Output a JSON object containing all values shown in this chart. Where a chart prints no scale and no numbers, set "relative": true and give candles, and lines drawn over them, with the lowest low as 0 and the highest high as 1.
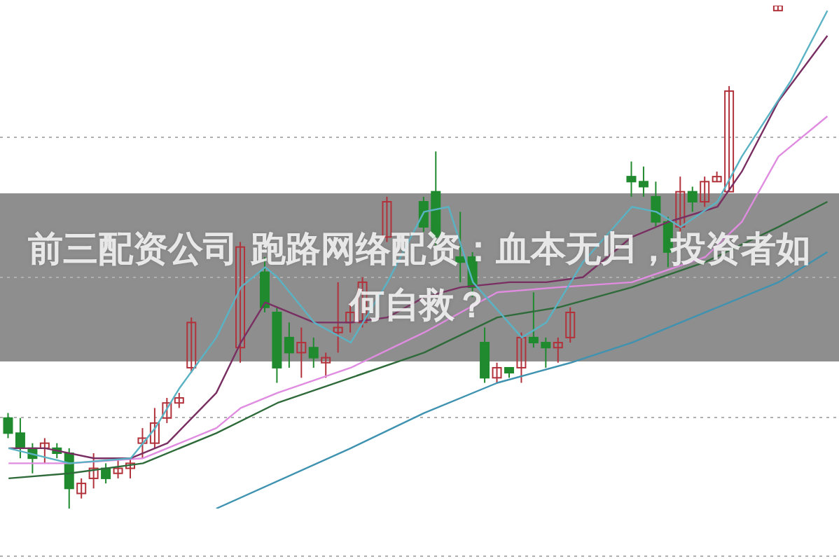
{
  "chart_data": {
    "type": "candlestick",
    "title": "前三配资公司 跑路网络配资：血本无归，投资者如何自救？",
    "relative": true,
    "grid": "y",
    "categories": [
      null,
      null,
      null,
      null,
      null,
      null,
      null,
      null,
      null,
      null,
      null,
      null,
      null,
      null,
      null,
      null,
      null,
      null,
      null,
      null,
      null,
      null,
      null,
      null,
      null,
      null,
      null,
      null,
      null,
      null,
      null,
      null,
      null,
      null,
      null,
      null,
      null,
      null,
      null,
      null,
      null,
      null,
      null,
      null,
      null,
      null,
      null,
      null,
      null,
      null,
      null,
      null,
      null,
      null,
      null,
      null,
      null,
      null,
      null,
      null,
      null,
      null,
      null,
      null,
      null,
      null,
      null,
      null
    ],
    "ohlc": [
      [
        0.18,
        0.19,
        0.14,
        0.15
      ],
      [
        0.15,
        0.18,
        0.1,
        0.12
      ],
      [
        0.12,
        0.13,
        0.07,
        0.1
      ],
      [
        0.12,
        0.14,
        0.09,
        0.13
      ],
      [
        0.12,
        0.13,
        0.1,
        0.11
      ],
      [
        0.11,
        0.12,
        0,
        0.04
      ],
      [
        0.03,
        0.06,
        0.02,
        0.05
      ],
      [
        0.06,
        0.11,
        0.04,
        0.08
      ],
      [
        0.08,
        0.09,
        0.05,
        0.06
      ],
      [
        0.07,
        0.1,
        0.06,
        0.08
      ],
      [
        0.08,
        0.1,
        0.06,
        0.09
      ],
      [
        0.13,
        0.16,
        0.1,
        0.14
      ],
      [
        0.13,
        0.2,
        0.12,
        0.17
      ],
      [
        0.18,
        0.22,
        0.17,
        0.21
      ],
      [
        0.21,
        0.23,
        0.2,
        0.22
      ],
      [
        0.28,
        0.38,
        0.27,
        0.37
      ],
      null,
      null,
      null,
      [
        0.32,
        0.53,
        0.29,
        0.52
      ],
      null,
      [
        0.47,
        0.5,
        0.39,
        0.4
      ],
      [
        0.39,
        0.4,
        0.25,
        0.28
      ],
      [
        0.34,
        0.37,
        0.28,
        0.31
      ],
      [
        0.31,
        0.36,
        0.26,
        0.33
      ],
      [
        0.32,
        0.34,
        0.28,
        0.3
      ],
      [
        0.29,
        0.31,
        0.26,
        0.3
      ],
      [
        0.35,
        0.45,
        0.31,
        0.36
      ],
      [
        0.37,
        0.41,
        0.35,
        0.39
      ],
      [
        0.37,
        0.46,
        0.36,
        0.45
      ],
      null,
      [
        0.54,
        0.62,
        0.53,
        0.61
      ],
      null,
      null,
      [
        0.61,
        0.62,
        0.55,
        0.56
      ],
      [
        0.63,
        0.71,
        0.52,
        0.54
      ],
      null,
      [
        0.5,
        0.59,
        0.45,
        0.49
      ],
      [
        0.5,
        0.51,
        0.42,
        0.44
      ],
      [
        0.33,
        0.36,
        0.25,
        0.26
      ],
      [
        0.26,
        0.29,
        0.25,
        0.28
      ],
      [
        0.28,
        0.28,
        0.26,
        0.27
      ],
      [
        0.28,
        0.35,
        0.25,
        0.34
      ],
      [
        0.34,
        0.43,
        0.32,
        0.33
      ],
      [
        0.33,
        0.34,
        0.28,
        0.32
      ],
      [
        0.32,
        0.34,
        0.29,
        0.33
      ],
      [
        0.34,
        0.4,
        0.33,
        0.39
      ],
      null,
      null,
      null,
      null,
      [
        0.66,
        0.69,
        0.62,
        0.65
      ],
      [
        0.65,
        0.68,
        0.62,
        0.64
      ],
      [
        0.62,
        0.65,
        0.56,
        0.57
      ],
      [
        0.57,
        0.58,
        0.48,
        0.51
      ],
      [
        0.56,
        0.66,
        0.55,
        0.63
      ],
      [
        0.63,
        0.64,
        0.59,
        0.61
      ],
      [
        0.61,
        0.66,
        0.6,
        0.65
      ],
      [
        0.65,
        0.67,
        0.65,
        0.66
      ],
      [
        0.63,
        0.84,
        0.63,
        0.83
      ],
      null,
      null,
      null,
      [
        0.99,
        1,
        0.99,
        1
      ],
      null,
      null,
      null,
      null
    ],
    "colors": [
      "#1f8a2e",
      "#1f8a2e",
      "#1f8a2e",
      "#b2323c",
      "#1f8a2e",
      "#1f8a2e",
      "#b2323c",
      "#b2323c",
      "#1f8a2e",
      "#b2323c",
      "#b2323c",
      "#b2323c",
      "#b2323c",
      "#b2323c",
      "#b2323c",
      "#b2323c",
      null,
      null,
      null,
      "#b2323c",
      null,
      "#1f8a2e",
      "#1f8a2e",
      "#1f8a2e",
      "#b2323c",
      "#1f8a2e",
      "#b2323c",
      "#b2323c",
      "#b2323c",
      "#b2323c",
      null,
      "#b2323c",
      null,
      null,
      "#1f8a2e",
      "#1f8a2e",
      null,
      "#1f8a2e",
      "#1f8a2e",
      "#1f8a2e",
      "#b2323c",
      "#1f8a2e",
      "#b2323c",
      "#1f8a2e",
      "#1f8a2e",
      "#b2323c",
      "#b2323c",
      null,
      null,
      null,
      null,
      "#1f8a2e",
      "#1f8a2e",
      "#1f8a2e",
      "#1f8a2e",
      "#b2323c",
      "#1f8a2e",
      "#b2323c",
      "#b2323c",
      "#b2323c",
      null,
      null,
      null,
      "#b2323c",
      null,
      null,
      null,
      null
    ],
    "series": [
      {
        "type": "line",
        "color": "#3f93b0",
        "values": [
          null,
          null,
          null,
          null,
          null,
          null,
          null,
          null,
          null,
          null,
          null,
          null,
          null,
          null,
          null,
          null,
          null,
          0,
          null,
          null,
          null,
          null,
          null,
          null,
          null,
          null,
          null,
          null,
          0.12,
          null,
          null,
          null,
          null,
          null,
          0.19,
          null,
          null,
          null,
          null,
          null,
          0.25,
          null,
          null,
          null,
          null,
          null,
          0.29,
          null,
          null,
          null,
          null,
          0.33,
          null,
          null,
          null,
          null,
          null,
          0.39,
          null,
          null,
          null,
          null,
          null,
          0.45,
          null,
          null,
          null,
          0.51
        ]
      },
      {
        "type": "line",
        "color": "#2f6b3a",
        "values": [
          0.06,
          null,
          null,
          null,
          null,
          0.07,
          null,
          null,
          null,
          null,
          null,
          0.09,
          null,
          null,
          null,
          null,
          null,
          0.15,
          null,
          null,
          null,
          null,
          0.21,
          null,
          null,
          null,
          null,
          null,
          0.26,
          null,
          null,
          null,
          null,
          null,
          0.31,
          null,
          null,
          null,
          null,
          null,
          0.38,
          null,
          null,
          null,
          null,
          0.4,
          null,
          null,
          null,
          null,
          null,
          0.44,
          null,
          null,
          null,
          null,
          null,
          0.49,
          null,
          null,
          null,
          null,
          null,
          0.56,
          null,
          null,
          null,
          0.61
        ]
      },
      {
        "type": "line",
        "color": "#e08ce0",
        "values": [
          0.09,
          null,
          null,
          null,
          null,
          0.09,
          null,
          null,
          null,
          null,
          null,
          0.1,
          null,
          null,
          null,
          null,
          null,
          0.16,
          null,
          0.2,
          null,
          null,
          0.23,
          null,
          null,
          null,
          null,
          null,
          0.28,
          null,
          null,
          null,
          null,
          null,
          0.35,
          null,
          null,
          null,
          null,
          null,
          0.43,
          null,
          null,
          null,
          null,
          0.44,
          null,
          null,
          null,
          null,
          null,
          0.45,
          null,
          null,
          null,
          null,
          null,
          0.5,
          null,
          null,
          0.57,
          null,
          null,
          0.7,
          null,
          null,
          null,
          0.78
        ]
      },
      {
        "type": "line",
        "color": "#7a2f62",
        "values": [
          0.12,
          null,
          null,
          0.12,
          null,
          null,
          null,
          0.1,
          null,
          null,
          0.1,
          null,
          null,
          0.13,
          null,
          null,
          null,
          0.23,
          null,
          0.33,
          null,
          0.41,
          null,
          null,
          null,
          0.37,
          null,
          null,
          0.37,
          null,
          null,
          0.38,
          null,
          null,
          0.42,
          null,
          null,
          0.44,
          null,
          null,
          null,
          0.45,
          null,
          null,
          0.45,
          null,
          null,
          0.46,
          null,
          null,
          null,
          0.54,
          null,
          null,
          0.57,
          null,
          null,
          null,
          0.6,
          null,
          0.67,
          null,
          null,
          0.81,
          null,
          null,
          null,
          0.94
        ]
      },
      {
        "type": "line",
        "color": "#5ab3c4",
        "values": [
          0.12,
          null,
          null,
          null,
          null,
          0.09,
          null,
          null,
          null,
          null,
          0.1,
          null,
          0.16,
          null,
          0.24,
          null,
          null,
          0.34,
          null,
          0.44,
          null,
          0.48,
          0.46,
          null,
          null,
          0.37,
          null,
          null,
          0.33,
          null,
          null,
          0.45,
          null,
          null,
          0.59,
          null,
          0.6,
          null,
          0.45,
          null,
          null,
          null,
          0.34,
          null,
          0.37,
          null,
          null,
          0.49,
          null,
          null,
          null,
          0.6,
          null,
          0.59,
          null,
          0.56,
          null,
          null,
          0.61,
          null,
          0.7,
          null,
          null,
          null,
          0.85,
          null,
          null,
          0.99
        ]
      }
    ]
  }
}
